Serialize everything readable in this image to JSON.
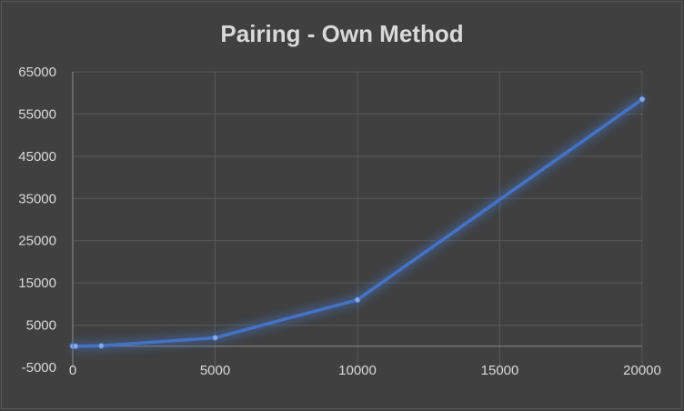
{
  "chart_data": {
    "type": "line",
    "title": "Pairing - Own Method",
    "xlabel": "",
    "ylabel": "",
    "x_ticks": [
      "0",
      "5000",
      "10000",
      "15000",
      "20000"
    ],
    "y_ticks": [
      "-5000",
      "5000",
      "15000",
      "25000",
      "35000",
      "45000",
      "55000",
      "65000"
    ],
    "xlim": [
      0,
      20000
    ],
    "ylim": [
      -5000,
      65000
    ],
    "grid": true,
    "legend": "none",
    "series": [
      {
        "color": "#4472c4",
        "points": [
          {
            "x": 0,
            "y": 0
          },
          {
            "x": 100,
            "y": 0
          },
          {
            "x": 1000,
            "y": 100
          },
          {
            "x": 5000,
            "y": 2000
          },
          {
            "x": 10000,
            "y": 11000
          },
          {
            "x": 20000,
            "y": 58500
          }
        ]
      }
    ]
  }
}
